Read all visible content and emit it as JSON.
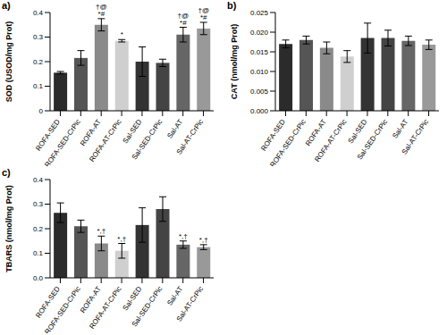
{
  "chart_data": [
    {
      "type": "bar",
      "title": "a)",
      "y_label": "SOD (USOD/mg Prot)",
      "categories": [
        "ROFA-SED",
        "ROFA-SED-CrPic",
        "ROFA-AT",
        "ROFA-AT-CrPic",
        "Sal-SED",
        "Sal-SED-CrPic",
        "Sal-AT",
        "Sal-AT-CrPic"
      ],
      "values": [
        0.155,
        0.215,
        0.35,
        0.285,
        0.2,
        0.195,
        0.31,
        0.335
      ],
      "errors": [
        0.005,
        0.03,
        0.025,
        0.005,
        0.06,
        0.015,
        0.03,
        0.025
      ],
      "annotations": [
        null,
        null,
        [
          "†@",
          "*#"
        ],
        [
          "*"
        ],
        null,
        null,
        [
          "†@",
          "*#"
        ],
        [
          "†@",
          "*#"
        ]
      ],
      "colors": [
        "#2b2b2b",
        "#555555",
        "#8a8a8a",
        "#cfcfcf",
        "#333333",
        "#444444",
        "#666666",
        "#999999"
      ],
      "ylim": [
        0,
        0.4
      ],
      "yticks": [
        0,
        0.1,
        0.2,
        0.3,
        0.4
      ]
    },
    {
      "type": "bar",
      "title": "b)",
      "y_label": "CAT (nmol/mg Prot)",
      "categories": [
        "ROFA-SED",
        "ROFA-SED-CrPic",
        "ROFA-AT",
        "ROFA-AT-CrPic",
        "Sal-SED",
        "Sal-SED-CrPic",
        "Sal-AT",
        "Sal-AT-CrPic"
      ],
      "values": [
        0.017,
        0.018,
        0.016,
        0.0138,
        0.0185,
        0.0185,
        0.0178,
        0.0168
      ],
      "errors": [
        0.001,
        0.001,
        0.0015,
        0.0015,
        0.0038,
        0.002,
        0.0012,
        0.0012
      ],
      "colors": [
        "#2b2b2b",
        "#555555",
        "#8a8a8a",
        "#cfcfcf",
        "#333333",
        "#444444",
        "#666666",
        "#999999"
      ],
      "ylim": [
        0,
        0.025
      ],
      "yticks": [
        {
          "value": 0,
          "label": "0.000"
        },
        0.005,
        {
          "value": 0.01,
          "label": "0.010"
        },
        0.015,
        {
          "value": 0.02,
          "label": "0.020"
        },
        0.025
      ]
    },
    {
      "type": "bar",
      "title": "c)",
      "y_label": "TBARS (nmol/mg Prot)",
      "categories": [
        "ROFA-SED",
        "ROFA-SED-CrPic",
        "ROFA-AT",
        "ROFA-AT-CrPic",
        "Sal-SED",
        "Sal-SED-CrPic",
        "Sal-AT",
        "Sal-AT-CrPic"
      ],
      "values": [
        0.265,
        0.21,
        0.14,
        0.11,
        0.215,
        0.28,
        0.135,
        0.125
      ],
      "errors": [
        0.04,
        0.025,
        0.03,
        0.03,
        0.07,
        0.05,
        0.015,
        0.01
      ],
      "annotations": [
        null,
        null,
        [
          "*,†"
        ],
        [
          "*,†"
        ],
        null,
        null,
        [
          "*,†"
        ],
        [
          "*,†"
        ]
      ],
      "colors": [
        "#2b2b2b",
        "#555555",
        "#8a8a8a",
        "#cfcfcf",
        "#333333",
        "#444444",
        "#666666",
        "#999999"
      ],
      "ylim": [
        0,
        0.4
      ],
      "yticks": [
        {
          "value": 0,
          "label": "0.0"
        },
        0.1,
        0.2,
        0.3,
        0.4
      ]
    }
  ]
}
